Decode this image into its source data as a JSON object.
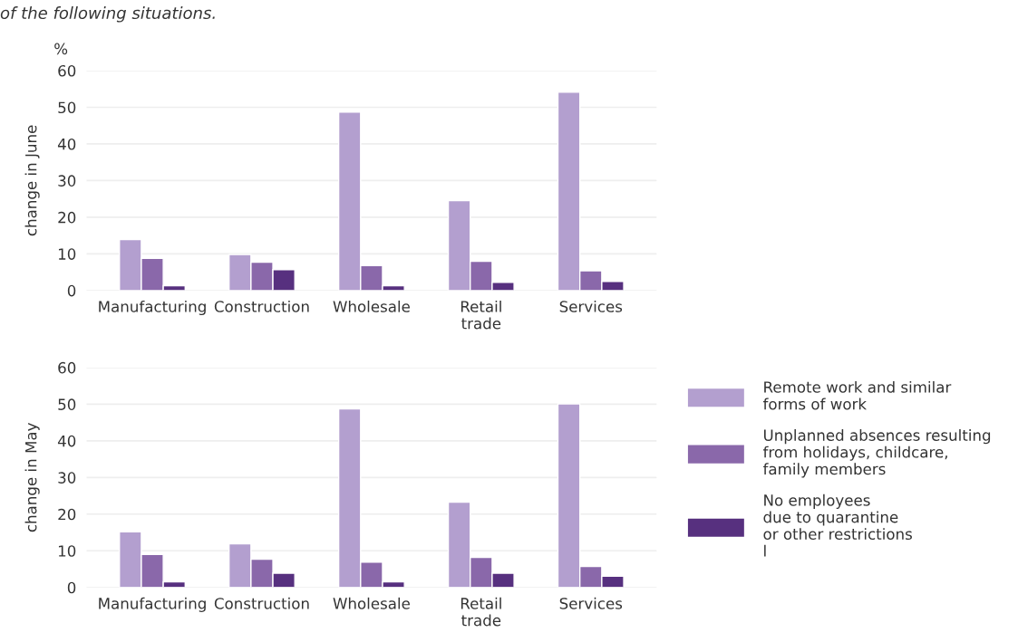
{
  "chart_data": [
    {
      "type": "bar",
      "title": "of the following situations.",
      "ylabel": "change in June",
      "annotations": [
        "%"
      ],
      "categories": [
        "Manufacturing",
        "Construction",
        "Wholesale",
        "Retail\ntrade",
        "Services"
      ],
      "series": [
        {
          "color": "#b39fcf",
          "values": [
            13.9,
            9.8,
            48.7,
            24.5,
            54.1
          ]
        },
        {
          "color": "#8a68aa",
          "values": [
            8.8,
            7.7,
            6.8,
            8.0,
            5.4
          ]
        },
        {
          "color": "#57307f",
          "values": [
            1.3,
            5.7,
            1.3,
            2.2,
            2.5
          ]
        }
      ],
      "ylim": [
        0,
        60
      ],
      "yticks": [
        0,
        10,
        20,
        30,
        40,
        50,
        60
      ],
      "grid": "y"
    },
    {
      "type": "bar",
      "ylabel": "change in May",
      "categories": [
        "Manufacturing",
        "Construction",
        "Wholesale",
        "Retail\ntrade",
        "Services"
      ],
      "series": [
        {
          "name": "Remote work and similar\nforms of work",
          "color": "#b39fcf",
          "values": [
            15.2,
            11.9,
            48.7,
            23.3,
            50.1
          ]
        },
        {
          "name": "Unplanned absences resulting\nfrom holidays, childcare,\nfamily members",
          "color": "#8a68aa",
          "values": [
            9.0,
            7.7,
            6.9,
            8.2,
            5.7
          ]
        },
        {
          "name": "No employees\ndue to quarantine\nor other restrictions\nl",
          "color": "#57307f",
          "values": [
            1.5,
            3.9,
            1.5,
            3.9,
            3.1
          ]
        }
      ],
      "ylim": [
        0,
        60
      ],
      "yticks": [
        0,
        10,
        20,
        30,
        40,
        50,
        60
      ],
      "grid": "y",
      "legend": "right"
    }
  ]
}
